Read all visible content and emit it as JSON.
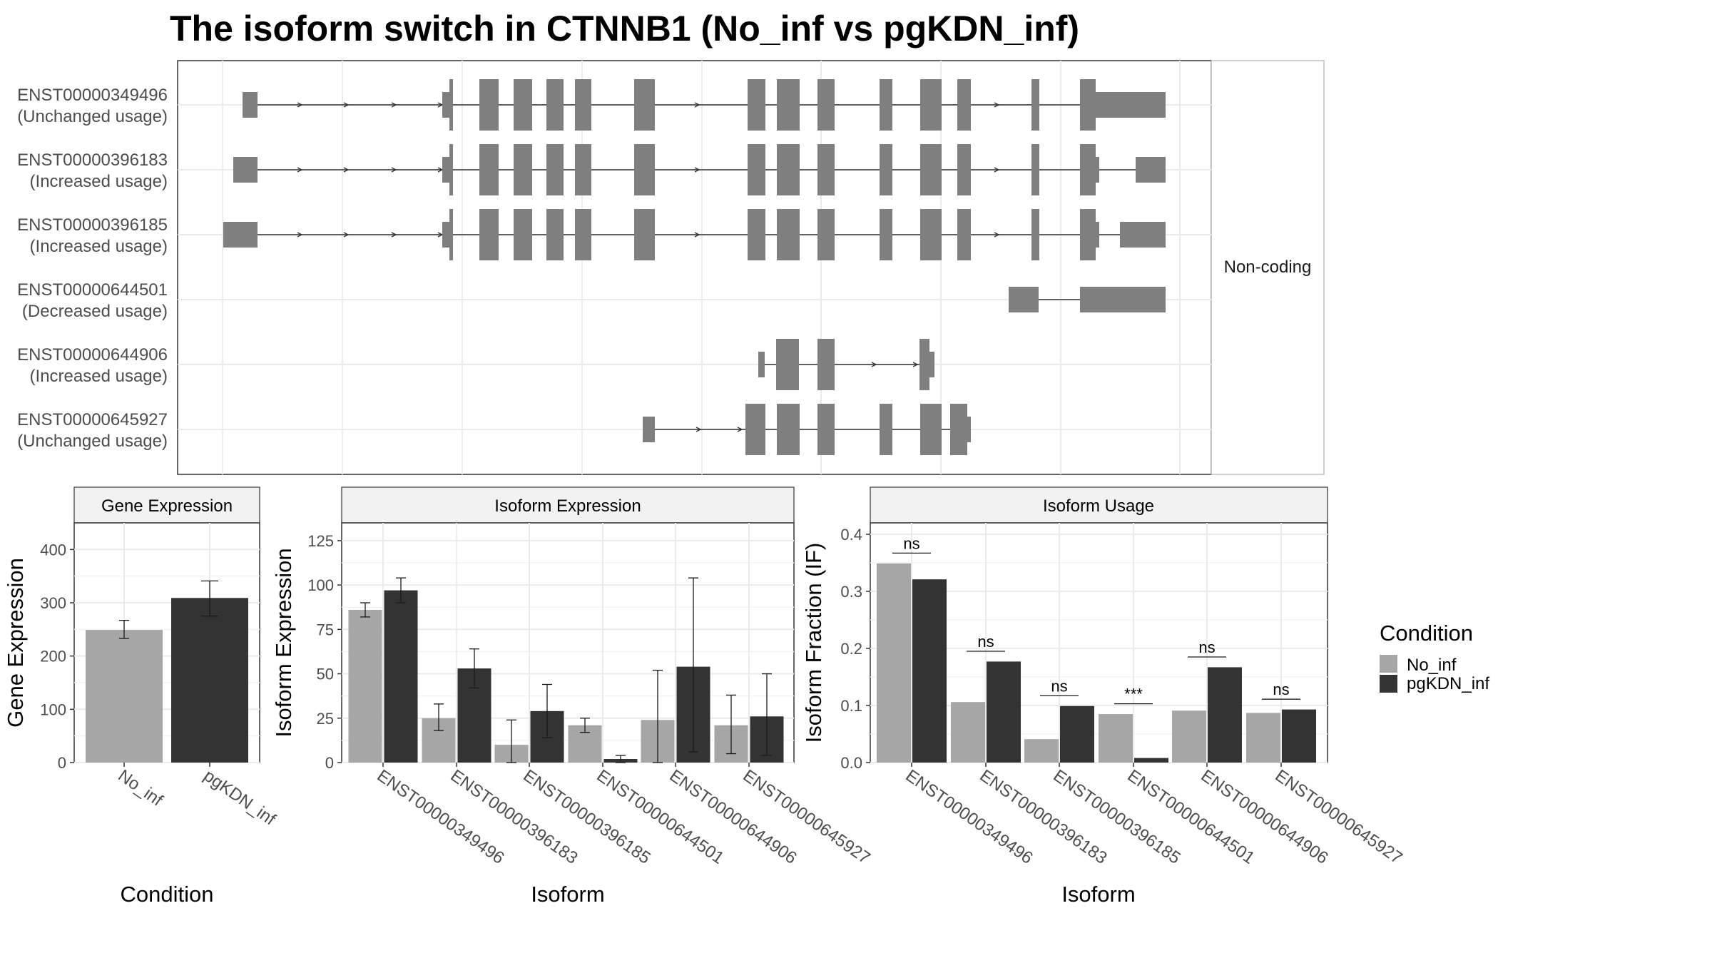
{
  "title": "The isoform switch in CTNNB1 (No_inf vs pgKDN_inf)",
  "colors": {
    "No_inf": "#a6a6a6",
    "pgKDN_inf": "#333333",
    "exon": "#7f7f7f",
    "strip": "#f2f2f2",
    "grid": "#ebebeb"
  },
  "structure_panel": {
    "strip_label": "Non-coding",
    "transcripts": [
      {
        "id": "ENST00000349496",
        "usage": "(Unchanged usage)"
      },
      {
        "id": "ENST00000396183",
        "usage": "(Increased usage)"
      },
      {
        "id": "ENST00000396185",
        "usage": "(Increased usage)"
      },
      {
        "id": "ENST00000644501",
        "usage": "(Decreased usage)"
      },
      {
        "id": "ENST00000644906",
        "usage": "(Increased usage)"
      },
      {
        "id": "ENST00000645927",
        "usage": "(Unchanged usage)"
      }
    ]
  },
  "legend": {
    "title": "Condition",
    "items": [
      "No_inf",
      "pgKDN_inf"
    ]
  },
  "chart_data": [
    {
      "type": "bar",
      "title": "Gene Expression",
      "xlabel": "Condition",
      "ylabel": "Gene Expression",
      "categories": [
        "No_inf",
        "pgKDN_inf"
      ],
      "values": [
        249,
        309
      ],
      "errors": [
        [
          233,
          267
        ],
        [
          275,
          341
        ]
      ],
      "ylim": [
        0,
        450
      ],
      "yticks": [
        0,
        100,
        200,
        300,
        400
      ]
    },
    {
      "type": "bar",
      "title": "Isoform Expression",
      "xlabel": "Isoform",
      "ylabel": "Isoform Expression",
      "categories": [
        "ENST00000349496",
        "ENST00000396183",
        "ENST00000396185",
        "ENST00000644501",
        "ENST00000644906",
        "ENST00000645927"
      ],
      "series": [
        {
          "name": "No_inf",
          "values": [
            86,
            25,
            10,
            21,
            24,
            21
          ],
          "errors": [
            [
              82,
              90
            ],
            [
              18,
              33
            ],
            [
              0,
              24
            ],
            [
              17,
              25
            ],
            [
              0,
              52
            ],
            [
              5,
              38
            ]
          ]
        },
        {
          "name": "pgKDN_inf",
          "values": [
            97,
            53,
            29,
            2,
            54,
            26
          ],
          "errors": [
            [
              90,
              104
            ],
            [
              42,
              64
            ],
            [
              14,
              44
            ],
            [
              0,
              4
            ],
            [
              6,
              104
            ],
            [
              4,
              50
            ]
          ]
        }
      ],
      "ylim": [
        0,
        135
      ],
      "yticks": [
        0,
        25,
        50,
        75,
        100,
        125
      ]
    },
    {
      "type": "bar",
      "title": "Isoform Usage",
      "xlabel": "Isoform",
      "ylabel": "Isoform Fraction (IF)",
      "categories": [
        "ENST00000349496",
        "ENST00000396183",
        "ENST00000396185",
        "ENST00000644501",
        "ENST00000644906",
        "ENST00000645927"
      ],
      "series": [
        {
          "name": "No_inf",
          "values": [
            0.349,
            0.106,
            0.041,
            0.085,
            0.091,
            0.087
          ]
        },
        {
          "name": "pgKDN_inf",
          "values": [
            0.321,
            0.177,
            0.099,
            0.008,
            0.167,
            0.093
          ]
        }
      ],
      "significance": [
        "ns",
        "ns",
        "ns",
        "***",
        "ns",
        "ns"
      ],
      "ylim": [
        0,
        0.42
      ],
      "yticks": [
        "0.0",
        "0.1",
        "0.2",
        "0.3",
        "0.4"
      ]
    }
  ]
}
